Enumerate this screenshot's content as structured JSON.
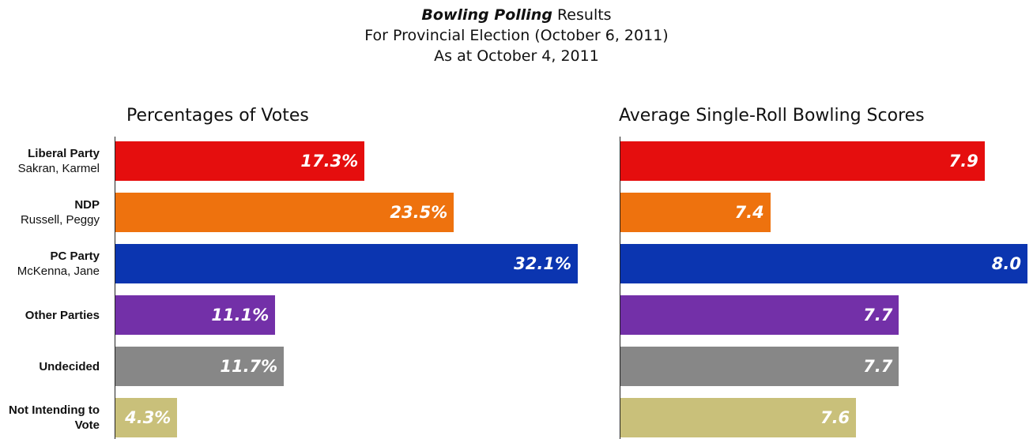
{
  "header": {
    "title_emphasis": "Bowling Polling",
    "title_rest": " Results",
    "subtitle1": "For Provincial Election (October 6, 2011)",
    "subtitle2": "As at October 4, 2011"
  },
  "categories": [
    {
      "name": "Liberal Party",
      "sub": "Sakran, Karmel",
      "color": "#e50e0e"
    },
    {
      "name": "NDP",
      "sub": "Russell, Peggy",
      "color": "#ee720e"
    },
    {
      "name": "PC Party",
      "sub": "McKenna, Jane",
      "color": "#0b35b0"
    },
    {
      "name": "Other Parties",
      "sub": "",
      "color": "#7330a8"
    },
    {
      "name": "Undecided",
      "sub": "",
      "color": "#878787"
    },
    {
      "name": "Not Intending to Vote",
      "sub": "",
      "color": "#c9c07a"
    }
  ],
  "chart_data": [
    {
      "type": "bar",
      "orientation": "horizontal",
      "title": "Percentages of Votes",
      "categories": [
        "Liberal Party",
        "NDP",
        "PC Party",
        "Other Parties",
        "Undecided",
        "Not Intending to Vote"
      ],
      "values": [
        17.3,
        23.5,
        32.1,
        11.1,
        11.7,
        4.3
      ],
      "value_labels": [
        "17.3%",
        "23.5%",
        "32.1%",
        "11.1%",
        "11.7%",
        "4.3%"
      ],
      "xlim": [
        0,
        32.1
      ]
    },
    {
      "type": "bar",
      "orientation": "horizontal",
      "title": "Average Single-Roll Bowling Scores",
      "categories": [
        "Liberal Party",
        "NDP",
        "PC Party",
        "Other Parties",
        "Undecided",
        "Not Intending to Vote"
      ],
      "values": [
        7.9,
        7.4,
        8.0,
        7.7,
        7.7,
        7.6
      ],
      "value_labels": [
        "7.9",
        "7.4",
        "8.0",
        "7.7",
        "7.7",
        "7.6"
      ],
      "xlim": [
        7.05,
        8.0
      ]
    }
  ]
}
